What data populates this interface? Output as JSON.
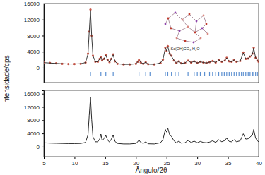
{
  "chart_data": [
    {
      "type": "line",
      "y_label": "ntensidade/cps",
      "annotation": "Sc(OH)CO₃·H₂O",
      "x": [
        5,
        6,
        7,
        8,
        9,
        10,
        11,
        11.8,
        12.2,
        12.4,
        12.6,
        12.8,
        13.0,
        13.4,
        13.8,
        14.1,
        14.3,
        14.5,
        14.8,
        15.1,
        15.4,
        15.7,
        16.0,
        16.3,
        16.6,
        17.0,
        18,
        19,
        20,
        20.3,
        20.5,
        20.8,
        21.2,
        21.6,
        22.0,
        23,
        24,
        24.4,
        24.8,
        25.0,
        25.2,
        25.5,
        25.8,
        26.2,
        26.6,
        27.0,
        27.4,
        28,
        28.5,
        29,
        29.5,
        30,
        30.5,
        31,
        31.5,
        32,
        32.5,
        33,
        33.5,
        34,
        34.5,
        34.8,
        35.2,
        35.6,
        36,
        36.4,
        37,
        37.5,
        37.9,
        38.3,
        38.6,
        39,
        39.2,
        39.5,
        39.8,
        40
      ],
      "series": [
        {
          "type": "scatter",
          "marker": "circle",
          "color": "#c8584a",
          "values": [
            1300,
            1200,
            1100,
            1000,
            950,
            950,
            1000,
            1300,
            3500,
            9000,
            14500,
            8000,
            3000,
            1500,
            1500,
            2200,
            2700,
            1800,
            2200,
            3200,
            2000,
            1400,
            2200,
            3300,
            1600,
            1000,
            850,
            850,
            1000,
            1500,
            1900,
            1300,
            1000,
            1400,
            900,
            850,
            1200,
            2000,
            5000,
            4200,
            5400,
            3500,
            3000,
            1800,
            1200,
            1600,
            1100,
            1200,
            1800,
            1300,
            1600,
            1200,
            1500,
            1300,
            1200,
            1400,
            1700,
            1300,
            2000,
            1500,
            1800,
            2500,
            1600,
            1500,
            2000,
            1500,
            1700,
            3800,
            2200,
            2300,
            2800,
            3500,
            5000,
            2500,
            1800,
            1500
          ]
        },
        {
          "type": "line",
          "color": "#222222",
          "values": [
            1280,
            1180,
            1090,
            1000,
            950,
            950,
            1000,
            1300,
            3400,
            9100,
            14300,
            7900,
            3000,
            1500,
            1500,
            2200,
            2600,
            1800,
            2200,
            3100,
            2000,
            1400,
            2200,
            3200,
            1600,
            1000,
            850,
            850,
            1000,
            1500,
            1850,
            1300,
            1000,
            1400,
            900,
            850,
            1200,
            2000,
            4900,
            4200,
            5300,
            3500,
            2900,
            1800,
            1200,
            1600,
            1100,
            1200,
            1750,
            1300,
            1600,
            1200,
            1500,
            1300,
            1200,
            1400,
            1650,
            1300,
            1950,
            1500,
            1800,
            2450,
            1600,
            1500,
            1950,
            1500,
            1700,
            3700,
            2200,
            2300,
            2750,
            3450,
            4900,
            2500,
            1800,
            1500
          ]
        }
      ],
      "bragg_positions": [
        12.6,
        14.3,
        15.1,
        16.3,
        20.5,
        21.6,
        22.3,
        24.8,
        25.2,
        25.8,
        26.4,
        27.0,
        28.5,
        29.5,
        30.0,
        30.5,
        31.2,
        32.0,
        32.5,
        33.0,
        33.5,
        34.0,
        34.4,
        34.8,
        35.2,
        35.6,
        36.0,
        36.4,
        36.8,
        37.2,
        37.5,
        37.9,
        38.3,
        38.6,
        39.0,
        39.2,
        39.5,
        39.8
      ],
      "bragg_color": "#5b8fd0",
      "xlim": [
        5,
        40
      ],
      "xticks": [
        5,
        10,
        15,
        20,
        25,
        30,
        35,
        40
      ],
      "ylim": [
        -3700,
        16000
      ],
      "yticks": [
        0,
        4000,
        8000,
        12000,
        16000
      ],
      "tick_labels": "y"
    },
    {
      "type": "line",
      "x_label": "Ângulo/2θ",
      "x": [
        5,
        6,
        7,
        8,
        9,
        10,
        11,
        11.8,
        12.2,
        12.4,
        12.6,
        12.8,
        13.0,
        13.4,
        13.8,
        14.1,
        14.3,
        14.5,
        14.8,
        15.1,
        15.4,
        15.7,
        16.0,
        16.3,
        16.6,
        17.0,
        18,
        19,
        20,
        20.3,
        20.5,
        20.8,
        21.2,
        21.6,
        22.0,
        23,
        24,
        24.4,
        24.8,
        25.0,
        25.2,
        25.5,
        25.8,
        26.2,
        26.6,
        27.0,
        27.4,
        28,
        28.5,
        29,
        29.5,
        30,
        30.5,
        31,
        31.5,
        32,
        32.5,
        33,
        33.5,
        34,
        34.5,
        34.8,
        35.2,
        35.6,
        36,
        36.4,
        37,
        37.5,
        37.9,
        38.3,
        38.6,
        39,
        39.2,
        39.5,
        39.8,
        40
      ],
      "series": [
        {
          "color": "#111111",
          "values": [
            1200,
            1100,
            1050,
            1000,
            950,
            950,
            1000,
            1300,
            3600,
            9500,
            15000,
            8200,
            3000,
            1500,
            1500,
            2300,
            3800,
            1900,
            2400,
            3400,
            2000,
            1400,
            2300,
            3500,
            1600,
            1000,
            850,
            850,
            1000,
            1500,
            2000,
            1300,
            1000,
            1500,
            900,
            850,
            1200,
            2100,
            5200,
            4400,
            5600,
            3600,
            3100,
            1800,
            1200,
            1700,
            1100,
            1200,
            1900,
            1300,
            1700,
            1200,
            1600,
            1300,
            1200,
            1400,
            1800,
            1300,
            2100,
            1500,
            1900,
            2600,
            1600,
            1500,
            2100,
            1500,
            1800,
            3900,
            2300,
            2400,
            2900,
            3600,
            5200,
            2600,
            1800,
            1500
          ]
        }
      ],
      "xlim": [
        5,
        40
      ],
      "xticks": [
        5,
        10,
        15,
        20,
        25,
        30,
        35,
        40
      ],
      "ylim": [
        -3000,
        17000
      ],
      "yticks": [
        0,
        4000,
        8000,
        12000,
        16000
      ],
      "tick_labels": true
    }
  ]
}
